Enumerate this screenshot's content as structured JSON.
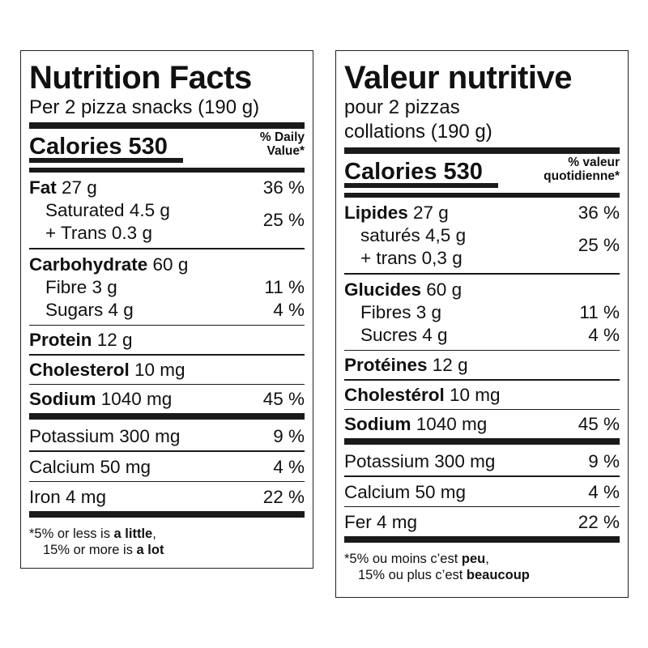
{
  "english": {
    "title": "Nutrition Facts",
    "serving": "Per 2 pizza snacks (190 g)",
    "calories_label": "Calories 530",
    "dv_header_line1": "% Daily",
    "dv_header_line2": "Value*",
    "fat": {
      "label": "Fat",
      "amount": " 27 g",
      "pct": "36 %"
    },
    "saturated": "Saturated 4.5 g",
    "trans": "+ Trans 0.3 g",
    "sat_trans_pct": "25 %",
    "carbohydrate": {
      "label": "Carbohydrate",
      "amount": " 60 g"
    },
    "fibre": {
      "label": "Fibre 3 g",
      "pct": "11 %"
    },
    "sugars": {
      "label": "Sugars 4 g",
      "pct": "4 %"
    },
    "protein": {
      "label": "Protein",
      "amount": " 12 g"
    },
    "cholesterol": {
      "label": "Cholesterol",
      "amount": " 10 mg"
    },
    "sodium": {
      "label": "Sodium",
      "amount": " 1040 mg",
      "pct": "45 %"
    },
    "potassium": {
      "label": "Potassium 300 mg",
      "pct": "9 %"
    },
    "calcium": {
      "label": "Calcium 50 mg",
      "pct": "4 %"
    },
    "iron": {
      "label": "Iron 4 mg",
      "pct": "22 %"
    },
    "footnote": {
      "line1_a": "*5% or less is ",
      "line1_b": "a little",
      "line1_c": ",",
      "line2_a": "15% or more is ",
      "line2_b": "a lot"
    }
  },
  "french": {
    "title": "Valeur nutritive",
    "serving_line1": "pour 2 pizzas",
    "serving_line2": "collations (190 g)",
    "calories_label": "Calories 530",
    "dv_header_line1": "% valeur",
    "dv_header_line2": "quotidienne*",
    "fat": {
      "label": "Lipides",
      "amount": " 27 g",
      "pct": "36 %"
    },
    "saturated": "saturés 4,5 g",
    "trans": "+ trans 0,3 g",
    "sat_trans_pct": "25 %",
    "carbohydrate": {
      "label": "Glucides",
      "amount": " 60 g"
    },
    "fibre": {
      "label": "Fibres 3 g",
      "pct": "11 %"
    },
    "sugars": {
      "label": "Sucres 4 g",
      "pct": "4 %"
    },
    "protein": {
      "label": "Protéines",
      "amount": " 12 g"
    },
    "cholesterol": {
      "label": "Cholestérol",
      "amount": " 10 mg"
    },
    "sodium": {
      "label": "Sodium",
      "amount": " 1040 mg",
      "pct": "45 %"
    },
    "potassium": {
      "label": "Potassium 300 mg",
      "pct": "9 %"
    },
    "calcium": {
      "label": "Calcium 50 mg",
      "pct": "4 %"
    },
    "iron": {
      "label": "Fer 4 mg",
      "pct": "22 %"
    },
    "footnote": {
      "line1_a": "*5% ou moins c’est ",
      "line1_b": "peu",
      "line1_c": ",",
      "line2_a": "15% ou plus c’est ",
      "line2_b": "beaucoup"
    }
  }
}
